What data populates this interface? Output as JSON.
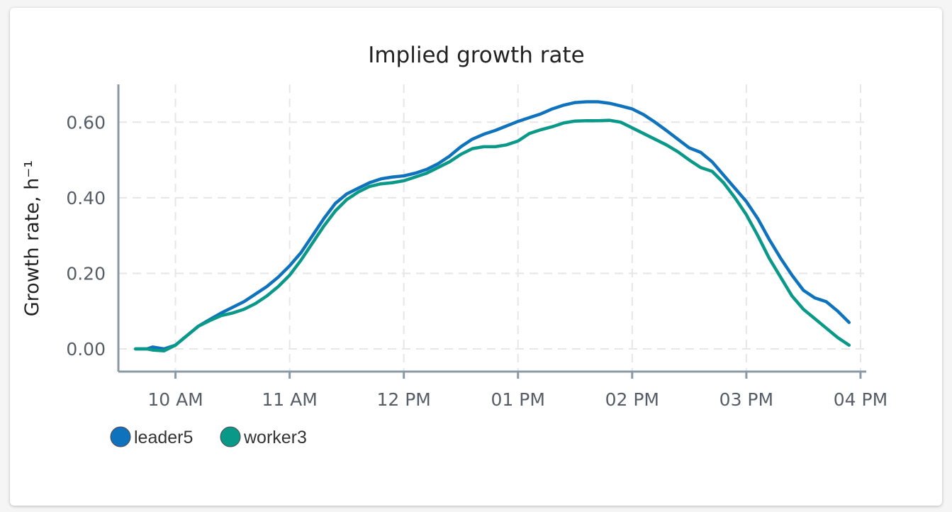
{
  "chart_data": {
    "type": "line",
    "title": "Implied growth rate",
    "ylabel": "Growth rate, h⁻¹",
    "xlabel": "",
    "x_ticks": [
      "10 AM",
      "11 AM",
      "12 PM",
      "01 PM",
      "02 PM",
      "03 PM",
      "04 PM"
    ],
    "x_tick_hours": [
      10,
      11,
      12,
      13,
      14,
      15,
      16
    ],
    "x_range_hours": [
      9.5,
      16.05
    ],
    "y_ticks": [
      "0.00",
      "0.20",
      "0.40",
      "0.60"
    ],
    "y_tick_values": [
      0,
      0.2,
      0.4,
      0.6
    ],
    "ylim": [
      -0.06,
      0.7
    ],
    "grid": true,
    "legend_position": "bottom-left",
    "series": [
      {
        "name": "leader5",
        "color": "#0e72bd",
        "x_hours": [
          9.65,
          9.75,
          9.8,
          9.9,
          10.0,
          10.1,
          10.2,
          10.3,
          10.4,
          10.5,
          10.6,
          10.7,
          10.8,
          10.9,
          11.0,
          11.1,
          11.2,
          11.3,
          11.4,
          11.5,
          11.6,
          11.7,
          11.8,
          11.9,
          12.0,
          12.1,
          12.2,
          12.3,
          12.4,
          12.5,
          12.6,
          12.7,
          12.8,
          12.9,
          13.0,
          13.1,
          13.2,
          13.3,
          13.4,
          13.5,
          13.6,
          13.7,
          13.8,
          13.9,
          14.0,
          14.1,
          14.2,
          14.3,
          14.4,
          14.5,
          14.6,
          14.7,
          14.8,
          14.9,
          15.0,
          15.1,
          15.2,
          15.3,
          15.4,
          15.5,
          15.6,
          15.7,
          15.8,
          15.9
        ],
        "values": [
          0.0,
          0.0,
          0.005,
          0.0,
          0.01,
          0.035,
          0.06,
          0.078,
          0.095,
          0.11,
          0.125,
          0.145,
          0.165,
          0.19,
          0.22,
          0.255,
          0.3,
          0.345,
          0.385,
          0.41,
          0.425,
          0.44,
          0.45,
          0.455,
          0.458,
          0.465,
          0.475,
          0.49,
          0.51,
          0.535,
          0.555,
          0.568,
          0.578,
          0.59,
          0.602,
          0.612,
          0.622,
          0.635,
          0.645,
          0.652,
          0.654,
          0.654,
          0.65,
          0.643,
          0.635,
          0.62,
          0.6,
          0.578,
          0.555,
          0.532,
          0.52,
          0.495,
          0.46,
          0.425,
          0.39,
          0.345,
          0.29,
          0.24,
          0.195,
          0.155,
          0.135,
          0.125,
          0.1,
          0.07
        ]
      },
      {
        "name": "worker3",
        "color": "#0a9888",
        "x_hours": [
          9.65,
          9.75,
          9.8,
          9.9,
          10.0,
          10.1,
          10.2,
          10.3,
          10.4,
          10.5,
          10.6,
          10.7,
          10.8,
          10.9,
          11.0,
          11.1,
          11.2,
          11.3,
          11.4,
          11.5,
          11.6,
          11.7,
          11.8,
          11.9,
          12.0,
          12.1,
          12.2,
          12.3,
          12.4,
          12.5,
          12.6,
          12.7,
          12.8,
          12.9,
          13.0,
          13.1,
          13.2,
          13.3,
          13.4,
          13.5,
          13.6,
          13.7,
          13.8,
          13.9,
          14.0,
          14.1,
          14.2,
          14.3,
          14.4,
          14.5,
          14.6,
          14.7,
          14.8,
          14.9,
          15.0,
          15.1,
          15.2,
          15.3,
          15.4,
          15.5,
          15.6,
          15.7,
          15.8,
          15.9
        ],
        "values": [
          0.0,
          0.0,
          -0.003,
          -0.005,
          0.01,
          0.035,
          0.06,
          0.075,
          0.088,
          0.095,
          0.105,
          0.12,
          0.14,
          0.165,
          0.195,
          0.235,
          0.28,
          0.325,
          0.365,
          0.395,
          0.415,
          0.43,
          0.437,
          0.44,
          0.445,
          0.455,
          0.465,
          0.48,
          0.495,
          0.515,
          0.53,
          0.535,
          0.535,
          0.54,
          0.55,
          0.57,
          0.58,
          0.588,
          0.598,
          0.603,
          0.604,
          0.604,
          0.605,
          0.6,
          0.585,
          0.57,
          0.555,
          0.54,
          0.522,
          0.5,
          0.48,
          0.47,
          0.44,
          0.4,
          0.355,
          0.3,
          0.24,
          0.19,
          0.14,
          0.105,
          0.08,
          0.055,
          0.03,
          0.01
        ]
      }
    ]
  }
}
